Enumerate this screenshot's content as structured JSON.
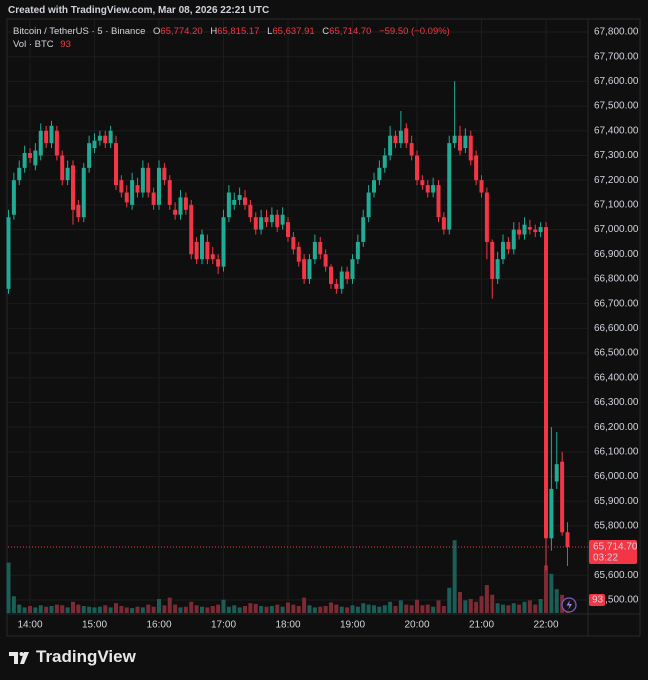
{
  "header": {
    "credit": "Created with TradingView.com, Mar 08, 2026 22:21 UTC"
  },
  "footer": {
    "brand": "TradingView"
  },
  "chart_data": {
    "type": "candlestick",
    "legend": {
      "symbol": "Bitcoin / TetherUS · 5 · Binance",
      "items": [
        {
          "key": "O",
          "value": "65,774.20"
        },
        {
          "key": "H",
          "value": "65,815.17"
        },
        {
          "key": "L",
          "value": "65,637.91"
        },
        {
          "key": "C",
          "value": "65,714.70"
        }
      ],
      "change": "−59.50 (−0.09%)",
      "volume_title": "Vol · BTC"
    },
    "countdown": "03:22",
    "up_color": "#22ab94",
    "down_color": "#f23645",
    "volume_up_color": "#1b5e56",
    "volume_down_color": "#7c2a33",
    "grid": true,
    "ylim": [
      65500,
      67800
    ],
    "yticks": [
      {
        "value": 67800,
        "label": "67,800.00"
      },
      {
        "value": 67700,
        "label": "67,700.00"
      },
      {
        "value": 67600,
        "label": "67,600.00"
      },
      {
        "value": 67500,
        "label": "67,500.00"
      },
      {
        "value": 67400,
        "label": "67,400.00"
      },
      {
        "value": 67300,
        "label": "67,300.00"
      },
      {
        "value": 67200,
        "label": "67,200.00"
      },
      {
        "value": 67100,
        "label": "67,100.00"
      },
      {
        "value": 67000,
        "label": "67,000.00"
      },
      {
        "value": 66900,
        "label": "66,900.00"
      },
      {
        "value": 66800,
        "label": "66,800.00"
      },
      {
        "value": 66700,
        "label": "66,700.00"
      },
      {
        "value": 66600,
        "label": "66,600.00"
      },
      {
        "value": 66500,
        "label": "66,500.00"
      },
      {
        "value": 66400,
        "label": "66,400.00"
      },
      {
        "value": 66300,
        "label": "66,300.00"
      },
      {
        "value": 66200,
        "label": "66,200.00"
      },
      {
        "value": 66100,
        "label": "66,100.00"
      },
      {
        "value": 66000,
        "label": "66,000.00"
      },
      {
        "value": 65900,
        "label": "65,900.00"
      },
      {
        "value": 65800,
        "label": "65,800.00"
      },
      {
        "value": 65600,
        "label": "65,600.00"
      },
      {
        "value": 65500,
        "label": "65,500.00"
      }
    ],
    "volume_lim": [
      0,
      650
    ],
    "categories": [
      null,
      null,
      null,
      null,
      "14:00",
      null,
      null,
      null,
      null,
      null,
      null,
      null,
      null,
      null,
      null,
      null,
      "15:00",
      null,
      null,
      null,
      null,
      null,
      null,
      null,
      null,
      null,
      null,
      null,
      "16:00",
      null,
      null,
      null,
      null,
      null,
      null,
      null,
      null,
      null,
      null,
      null,
      "17:00",
      null,
      null,
      null,
      null,
      null,
      null,
      null,
      null,
      null,
      null,
      null,
      "18:00",
      null,
      null,
      null,
      null,
      null,
      null,
      null,
      null,
      null,
      null,
      null,
      "19:00",
      null,
      null,
      null,
      null,
      null,
      null,
      null,
      null,
      null,
      null,
      null,
      "20:00",
      null,
      null,
      null,
      null,
      null,
      null,
      null,
      null,
      null,
      null,
      null,
      "21:00",
      null,
      null,
      null,
      null,
      null,
      null,
      null,
      null,
      null,
      null,
      null,
      "22:00",
      null,
      null,
      null,
      null
    ],
    "open": [
      66760,
      67060,
      67200,
      67250,
      67310,
      67260,
      67300,
      67400,
      67350,
      67400,
      67300,
      67200,
      67260,
      67100,
      67050,
      67250,
      67330,
      67360,
      67380,
      67350,
      67350,
      67200,
      67150,
      67100,
      67180,
      67150,
      67250,
      67150,
      67100,
      67250,
      67200,
      67080,
      67060,
      67130,
      67100,
      66950,
      66880,
      66950,
      66900,
      66880,
      66850,
      67050,
      67100,
      67120,
      67130,
      67100,
      67050,
      67000,
      67050,
      67030,
      67060,
      67020,
      67030,
      66970,
      66930,
      66880,
      66800,
      66880,
      66950,
      66900,
      66850,
      66780,
      66760,
      66830,
      66800,
      66880,
      66950,
      67050,
      67150,
      67200,
      67250,
      67300,
      67380,
      67350,
      67410,
      67350,
      67300,
      67200,
      67180,
      67150,
      67180,
      67050,
      67000,
      67350,
      67380,
      67330,
      67380,
      67300,
      67200,
      67150,
      66950,
      66800,
      66880,
      66950,
      66920,
      67000,
      66980,
      67010,
      67000,
      66990,
      67010,
      65750,
      65980,
      66060,
      65774.2
    ],
    "high": [
      67080,
      67230,
      67280,
      67340,
      67330,
      67350,
      67430,
      67420,
      67440,
      67420,
      67320,
      67280,
      67280,
      67120,
      67270,
      67380,
      67390,
      67400,
      67400,
      67420,
      67380,
      67220,
      67180,
      67230,
      67210,
      67280,
      67270,
      67170,
      67280,
      67270,
      67220,
      67110,
      67160,
      67150,
      67120,
      66970,
      67000,
      66980,
      66930,
      66900,
      67080,
      67180,
      67150,
      67170,
      67160,
      67120,
      67070,
      67080,
      67080,
      67090,
      67080,
      67090,
      67050,
      66990,
      66950,
      66900,
      66900,
      66980,
      66970,
      66920,
      66860,
      66800,
      66850,
      66850,
      66900,
      66980,
      67080,
      67180,
      67230,
      67280,
      67330,
      67420,
      67400,
      67480,
      67430,
      67380,
      67320,
      67220,
      67200,
      67210,
      67200,
      67070,
      67380,
      67600,
      67420,
      67410,
      67400,
      67320,
      67220,
      67170,
      66960,
      66910,
      66980,
      66970,
      67030,
      67030,
      67050,
      67040,
      67020,
      67030,
      67030,
      66200,
      66180,
      66100,
      65815.17
    ],
    "low": [
      66740,
      67040,
      67180,
      67230,
      67270,
      67240,
      67280,
      67330,
      67330,
      67280,
      67180,
      67180,
      67020,
      67030,
      67030,
      67230,
      67310,
      67340,
      67330,
      67330,
      67160,
      67130,
      67090,
      67080,
      67130,
      67130,
      67130,
      67080,
      67080,
      67180,
      67080,
      67040,
      67040,
      67060,
      66880,
      66860,
      66860,
      66860,
      66860,
      66820,
      66830,
      67030,
      67080,
      67100,
      67080,
      67030,
      66980,
      66980,
      67010,
      67010,
      66990,
      67000,
      66950,
      66900,
      66850,
      66780,
      66780,
      66860,
      66880,
      66830,
      66760,
      66740,
      66740,
      66780,
      66780,
      66860,
      66930,
      67030,
      67130,
      67180,
      67230,
      67280,
      67330,
      67330,
      67330,
      67280,
      67180,
      67160,
      67130,
      67130,
      67030,
      66980,
      66980,
      67330,
      67300,
      67310,
      67260,
      67180,
      67130,
      66880,
      66720,
      66780,
      66860,
      66900,
      66900,
      66960,
      66960,
      66980,
      66970,
      66970,
      65620,
      65700,
      65950,
      65760,
      65637.91
    ],
    "close": [
      67050,
      67200,
      67250,
      67310,
      67290,
      67320,
      67400,
      67350,
      67420,
      67300,
      67200,
      67250,
      67080,
      67050,
      67250,
      67350,
      67360,
      67380,
      67350,
      67400,
      67180,
      67150,
      67110,
      67200,
      67150,
      67250,
      67150,
      67100,
      67250,
      67200,
      67100,
      67060,
      67130,
      67080,
      66900,
      66880,
      66980,
      66880,
      66880,
      66850,
      67050,
      67150,
      67120,
      67140,
      67100,
      67050,
      67000,
      67050,
      67030,
      67060,
      67010,
      67060,
      66970,
      66920,
      66870,
      66800,
      66880,
      66950,
      66900,
      66850,
      66780,
      66760,
      66830,
      66800,
      66880,
      66950,
      67050,
      67150,
      67200,
      67250,
      67300,
      67380,
      67350,
      67400,
      67350,
      67300,
      67200,
      67180,
      67150,
      67180,
      67050,
      67000,
      67350,
      67380,
      67320,
      67380,
      67280,
      67200,
      67150,
      66950,
      66800,
      66880,
      66950,
      66920,
      67000,
      66980,
      67020,
      67000,
      66990,
      67010,
      65750,
      65950,
      66050,
      65774.2,
      65714.7
    ],
    "volumes": [
      360,
      120,
      60,
      40,
      50,
      40,
      55,
      45,
      50,
      60,
      55,
      40,
      80,
      60,
      50,
      45,
      40,
      45,
      55,
      40,
      70,
      50,
      40,
      35,
      45,
      40,
      60,
      45,
      100,
      55,
      110,
      60,
      40,
      45,
      80,
      55,
      45,
      40,
      50,
      60,
      95,
      45,
      55,
      40,
      50,
      70,
      65,
      50,
      45,
      50,
      60,
      45,
      75,
      60,
      50,
      110,
      55,
      40,
      45,
      50,
      75,
      60,
      45,
      40,
      55,
      45,
      70,
      60,
      55,
      45,
      55,
      80,
      50,
      90,
      60,
      55,
      95,
      55,
      60,
      45,
      90,
      50,
      180,
      520,
      150,
      90,
      100,
      80,
      120,
      200,
      130,
      70,
      60,
      55,
      70,
      60,
      80,
      90,
      60,
      100,
      340,
      280,
      170,
      130,
      93
    ]
  }
}
